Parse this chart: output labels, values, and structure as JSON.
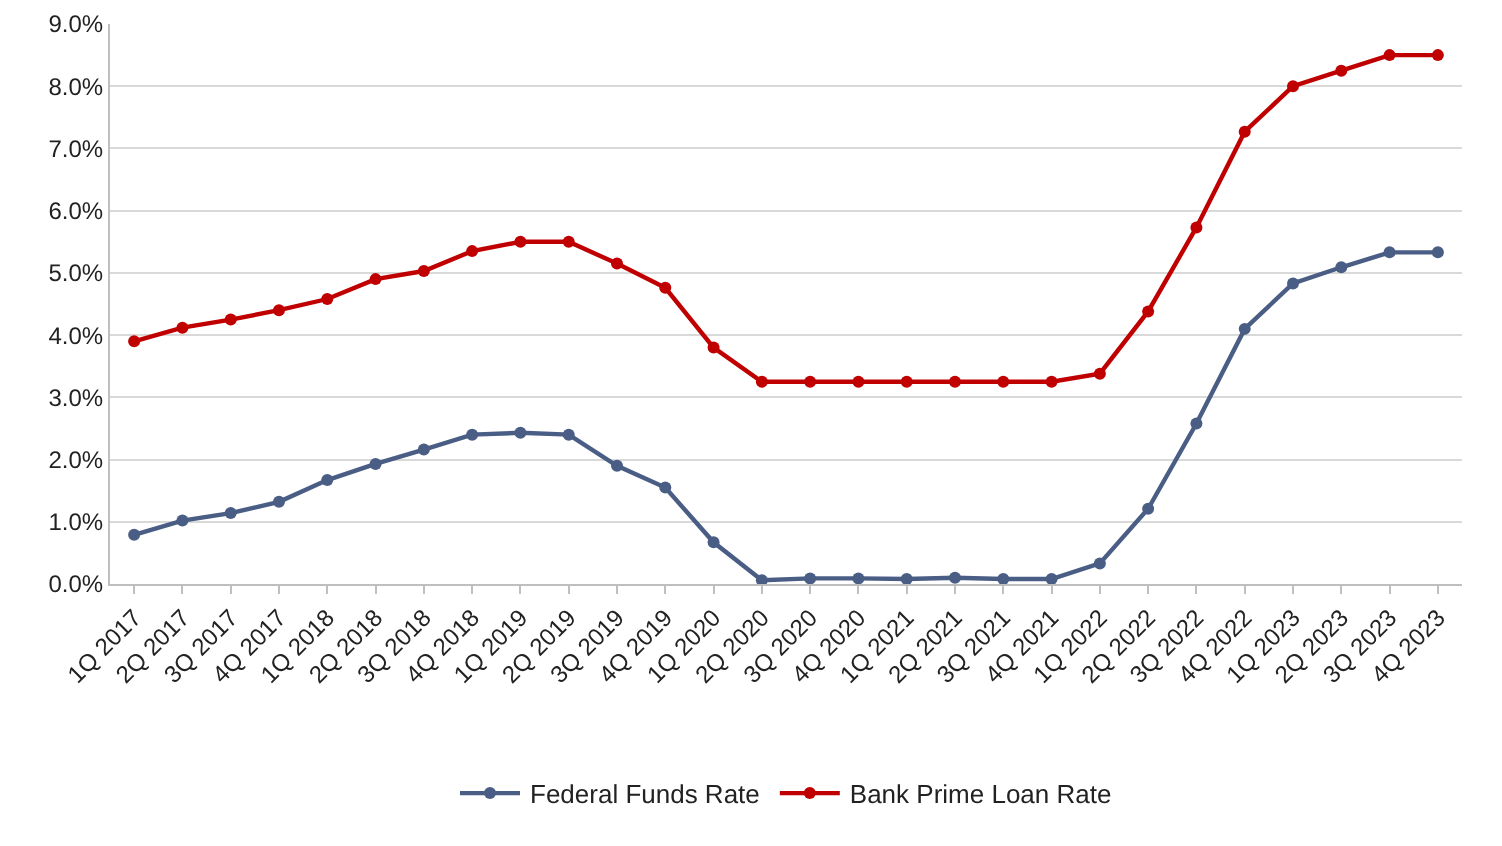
{
  "chart_data": {
    "type": "line",
    "categories": [
      "1Q 2017",
      "2Q 2017",
      "3Q 2017",
      "4Q 2017",
      "1Q 2018",
      "2Q 2018",
      "3Q 2018",
      "4Q 2018",
      "1Q 2019",
      "2Q 2019",
      "3Q 2019",
      "4Q 2019",
      "1Q 2020",
      "2Q 2020",
      "3Q 2020",
      "4Q 2020",
      "1Q 2021",
      "2Q 2021",
      "3Q 2021",
      "4Q 2021",
      "1Q 2022",
      "2Q 2022",
      "3Q 2022",
      "4Q 2022",
      "1Q 2023",
      "2Q 2023",
      "3Q 2023",
      "4Q 2023"
    ],
    "series": [
      {
        "name": "Federal Funds Rate",
        "color": "#4a5e85",
        "values": [
          0.79,
          1.02,
          1.14,
          1.32,
          1.67,
          1.93,
          2.16,
          2.4,
          2.43,
          2.4,
          1.9,
          1.55,
          0.67,
          0.06,
          0.09,
          0.09,
          0.08,
          0.1,
          0.08,
          0.08,
          0.33,
          1.21,
          2.58,
          4.1,
          4.83,
          5.09,
          5.33,
          5.33
        ]
      },
      {
        "name": "Bank Prime Loan Rate",
        "color": "#c00000",
        "values": [
          3.9,
          4.12,
          4.25,
          4.4,
          4.58,
          4.9,
          5.03,
          5.35,
          5.5,
          5.5,
          5.15,
          4.76,
          3.8,
          3.25,
          3.25,
          3.25,
          3.25,
          3.25,
          3.25,
          3.25,
          3.38,
          4.38,
          5.73,
          7.27,
          8.0,
          8.25,
          8.5,
          8.5
        ]
      }
    ],
    "ylim": [
      0,
      9
    ],
    "yticks": [
      {
        "value": 0,
        "label": "0.0%"
      },
      {
        "value": 1,
        "label": "1.0%"
      },
      {
        "value": 2,
        "label": "2.0%"
      },
      {
        "value": 3,
        "label": "3.0%"
      },
      {
        "value": 4,
        "label": "4.0%"
      },
      {
        "value": 5,
        "label": "5.0%"
      },
      {
        "value": 6,
        "label": "6.0%"
      },
      {
        "value": 7,
        "label": "7.0%"
      },
      {
        "value": 8,
        "label": "8.0%"
      },
      {
        "value": 9,
        "label": "9.0%"
      }
    ],
    "grid": "y",
    "legend": "bottom",
    "marker": "circle",
    "line_style": "solid"
  }
}
